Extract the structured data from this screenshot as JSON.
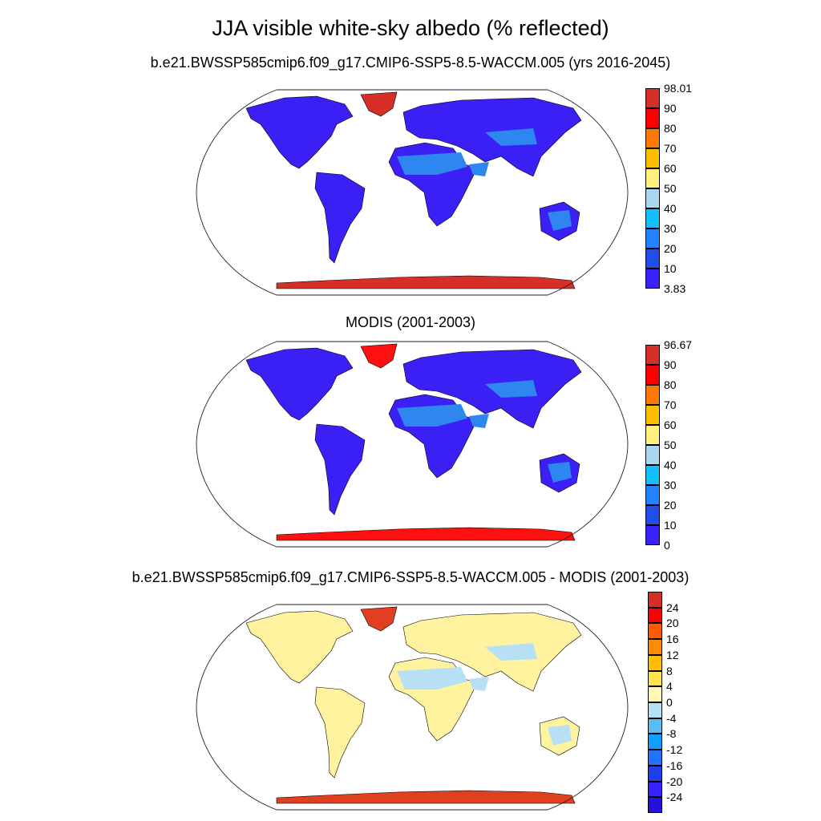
{
  "title": "JJA visible white-sky albedo (% reflected)",
  "panels": [
    {
      "title": "b.e21.BWSSP585cmip6.f09_g17.CMIP6-SSP5-8.5-WACCM.005 (yrs 2016-2045)",
      "colorbar": {
        "labels": [
          "98.01",
          "90",
          "80",
          "70",
          "60",
          "50",
          "40",
          "30",
          "20",
          "10",
          "3.83"
        ],
        "colors": [
          "#d62f27",
          "#ff0000",
          "#ff7800",
          "#ffbf00",
          "#fff17a",
          "#a9d7f2",
          "#11c0ff",
          "#2183ff",
          "#1f4fe8",
          "#3a22ff"
        ]
      },
      "land_color": "#3b20f5",
      "desert_color": "#2e86f0",
      "ice_color": "#d62f27"
    },
    {
      "title": "MODIS (2001-2003)",
      "colorbar": {
        "labels": [
          "96.67",
          "90",
          "80",
          "70",
          "60",
          "50",
          "40",
          "30",
          "20",
          "10",
          "0"
        ],
        "colors": [
          "#d62f27",
          "#ff0000",
          "#ff7800",
          "#ffbf00",
          "#fff17a",
          "#a9d7f2",
          "#11c0ff",
          "#2183ff",
          "#1f4fe8",
          "#3a22ff"
        ]
      },
      "land_color": "#3b20f5",
      "desert_color": "#2e86f0",
      "ice_color": "#ff1010"
    },
    {
      "title": "b.e21.BWSSP585cmip6.f09_g17.CMIP6-SSP5-8.5-WACCM.005 - MODIS (2001-2003)",
      "colorbar": {
        "labels": [
          "24",
          "20",
          "16",
          "12",
          "8",
          "4",
          "0",
          "-4",
          "-8",
          "-12",
          "-16",
          "-20",
          "-24"
        ],
        "colors": [
          "#d62f27",
          "#ff0000",
          "#ff5a00",
          "#ff8c00",
          "#ffbf00",
          "#ffe14d",
          "#fff9b8",
          "#b8e0f5",
          "#55bff5",
          "#11a0ff",
          "#2272ff",
          "#1f3fe8",
          "#3a22ff",
          "#2412d8"
        ]
      },
      "land_color": "#fff3a0",
      "desert_color": "#b8e0f5",
      "ice_color": "#e04020"
    }
  ]
}
